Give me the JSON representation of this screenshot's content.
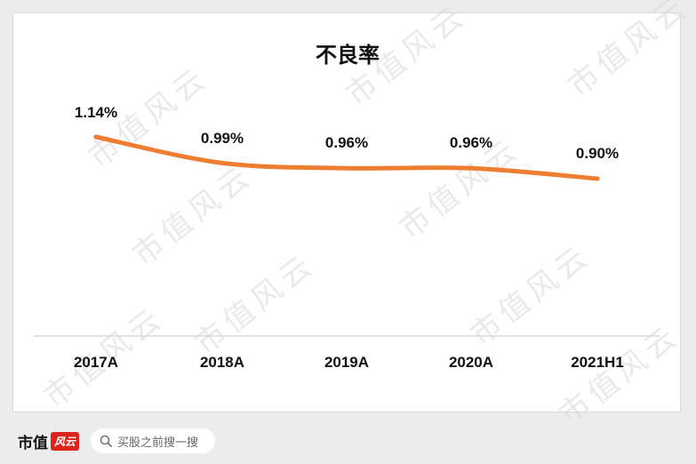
{
  "chart_data": {
    "type": "line",
    "title": "不良率",
    "categories": [
      "2017A",
      "2018A",
      "2019A",
      "2020A",
      "2021H1"
    ],
    "values": [
      1.14,
      0.99,
      0.96,
      0.96,
      0.9
    ],
    "value_labels": [
      "1.14%",
      "0.99%",
      "0.96%",
      "0.96%",
      "0.90%"
    ],
    "unit": "%",
    "color": "#ed7d31",
    "grid": false,
    "legend": "none"
  },
  "watermark": "市值风云",
  "footer": {
    "brand_text": "市值",
    "brand_mark": "风云",
    "search_placeholder": "买股之前搜一搜"
  }
}
